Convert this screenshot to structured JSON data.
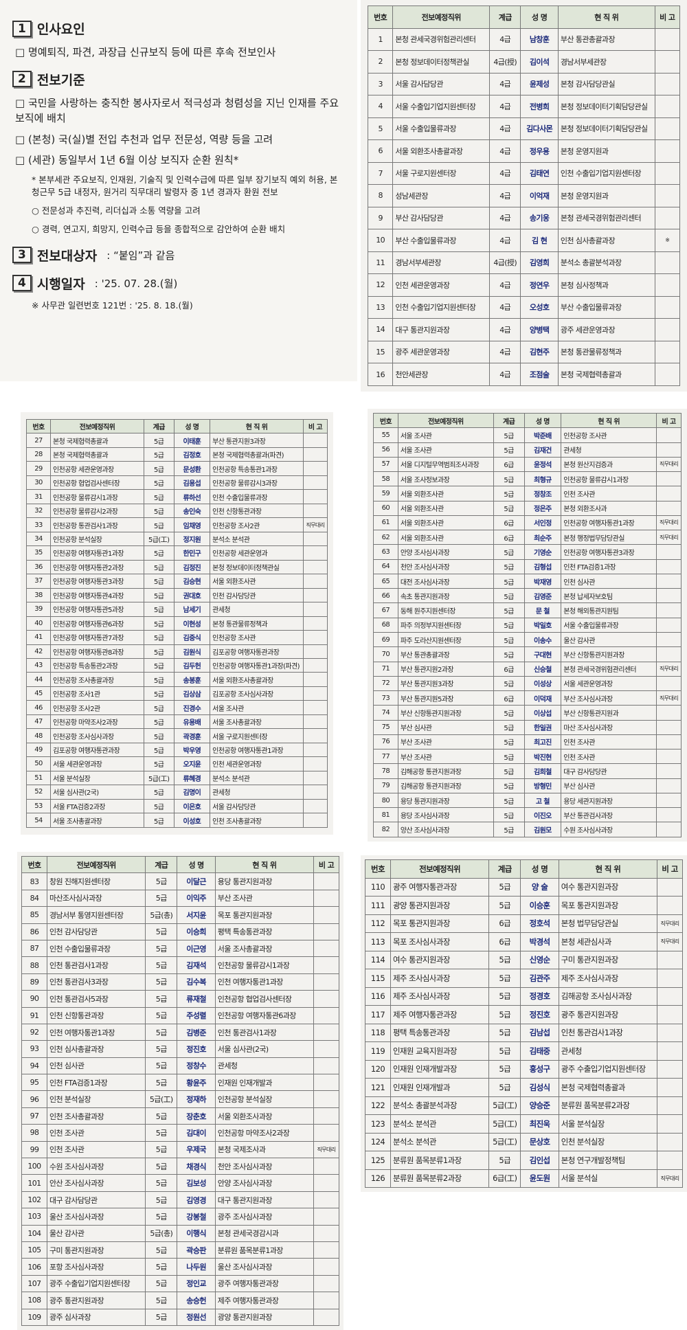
{
  "notice": {
    "sections": [
      {
        "number": "1",
        "title": "인사요인",
        "items": [
          "□ 명예퇴직, 파견, 과장급 신규보직 등에 따른 후속 전보인사"
        ]
      },
      {
        "number": "2",
        "title": "전보기준",
        "items": [
          "□ 국민을 사랑하는 충직한 봉사자로서 적극성과 청렴성을 지닌 인재를 주요 보직에 배치",
          "□ (본청) 국(실)별 전입 추천과 업무 전문성, 역량 등을 고려",
          "□ (세관) 동일부서 1년 6월 이상 보직자 순환 원칙*",
          "* 본부세관 주요보직, 인재원, 기술직 및 인력수급에 따른 일부 장기보직 예외 허용, 본청근무 5급 내정자, 원거리 직무대리 발령자 중 1년 경과자 환원 전보",
          "○ 전문성과 추진력, 리더십과 소통 역량을 고려",
          "○ 경력, 연고지, 희망지, 인력수급 등을 종합적으로 감안하여 순환 배치"
        ]
      },
      {
        "number": "3",
        "title": "전보대상자",
        "detail": ": “붙임”과 같음",
        "items": []
      },
      {
        "number": "4",
        "title": "시행일자",
        "detail": ": '25. 07. 28.(월)",
        "items": [
          "※ 사무관 일련번호 121번 : '25. 8. 18.(월)"
        ]
      }
    ]
  },
  "tables": [
    {
      "header": [
        "번호",
        "전보예정직위",
        "계급",
        "성 명",
        "현 직 위",
        "비 고"
      ],
      "rows": [
        [
          1,
          "본청 관세국경위험관리센터",
          "4급",
          "남창훈",
          "부산 통관총괄과장"
        ],
        [
          2,
          "본청 정보데이터정책관실",
          "4급(授)",
          "김이석",
          "경남서부세관장"
        ],
        [
          3,
          "서울 감사담당관",
          "4급",
          "윤제성",
          "본청 감사담당관실"
        ],
        [
          4,
          "서울 수출입기업지원센터장",
          "4급",
          "전병희",
          "본청 정보데이터기획담당관실"
        ],
        [
          5,
          "서울 수출입물류과장",
          "4급",
          "김다사몬",
          "본청 정보데이터기획담당관실"
        ],
        [
          6,
          "서울 외환조사총괄과장",
          "4급",
          "정우용",
          "본청 운영지원과"
        ],
        [
          7,
          "서울 구로지원센터장",
          "4급",
          "김태연",
          "인천 수출입기업지원센터장"
        ],
        [
          8,
          "성남세관장",
          "4급",
          "이억재",
          "본청 운영지원과"
        ],
        [
          9,
          "부산 감사담당관",
          "4급",
          "송기웅",
          "본청 관세국경위험관리센터"
        ],
        [
          10,
          "부산 수출입물류과장",
          "4급",
          "김 현",
          "인천 심사총괄과장",
          "※"
        ],
        [
          11,
          "경남서부세관장",
          "4급(授)",
          "김영희",
          "분석소 총괄분석과장"
        ],
        [
          12,
          "인천 세관운영과장",
          "4급",
          "정연우",
          "본청 심사정책과"
        ],
        [
          13,
          "인천 수출입기업지원센터장",
          "4급",
          "오성호",
          "부산 수출입물류과장"
        ],
        [
          14,
          "대구 통관지원과장",
          "4급",
          "양병택",
          "광주 세관운영과장"
        ],
        [
          15,
          "광주 세관운영과장",
          "4급",
          "김현주",
          "본청 통관물류정책과"
        ],
        [
          16,
          "천안세관장",
          "4급",
          "조점술",
          "본청 국제협력총괄과"
        ]
      ]
    },
    {
      "header": [
        "번호",
        "전보예정직위",
        "계급",
        "성 명",
        "현 직 위",
        "비 고"
      ],
      "rows": [
        [
          27,
          "본청 국제협력총괄과",
          "5급",
          "이태훈",
          "부산 통관지원3과장"
        ],
        [
          28,
          "본청 국제협력총괄과",
          "5급",
          "김정호",
          "본청 국제협력총괄과(파견)"
        ],
        [
          29,
          "인천공항 세관운영과장",
          "5급",
          "문성환",
          "인천공항 특송통관1과장"
        ],
        [
          30,
          "인천공항 협업검사센터장",
          "5급",
          "김용섭",
          "인천공항 물류감시3과장"
        ],
        [
          31,
          "인천공항 물류감시1과장",
          "5급",
          "류하선",
          "인천 수출입물류과장"
        ],
        [
          32,
          "인천공항 물류감시2과장",
          "5급",
          "송인숙",
          "인천 신항통관과장"
        ],
        [
          33,
          "인천공항 통관검사1과장",
          "5급",
          "임채영",
          "인천공항 조사2관",
          "직무대리"
        ],
        [
          34,
          "인천공항 분석실장",
          "5급(工)",
          "정지원",
          "분석소 분석관"
        ],
        [
          35,
          "인천공항 여행자통관1과장",
          "5급",
          "한민구",
          "인천공항 세관운영과"
        ],
        [
          36,
          "인천공항 여행자통관2과장",
          "5급",
          "김정진",
          "본청 정보데이터정책관실"
        ],
        [
          37,
          "인천공항 여행자통관3과장",
          "5급",
          "김승현",
          "서울 외환조사관"
        ],
        [
          38,
          "인천공항 여행자통관4과장",
          "5급",
          "권대호",
          "인천 감사담당관"
        ],
        [
          39,
          "인천공항 여행자통관5과장",
          "5급",
          "남세기",
          "관세청"
        ],
        [
          40,
          "인천공항 여행자통관6과장",
          "5급",
          "이현성",
          "본청 통관물류정책과"
        ],
        [
          41,
          "인천공항 여행자통관7과장",
          "5급",
          "김중식",
          "인천공항 조사관"
        ],
        [
          42,
          "인천공항 여행자통관8과장",
          "5급",
          "김원식",
          "김포공항 여행자통관과장"
        ],
        [
          43,
          "인천공항 특송통관2과장",
          "5급",
          "김두헌",
          "인천공항 여행자통관1과장(파견)"
        ],
        [
          44,
          "인천공항 조사총괄과장",
          "5급",
          "송봉훈",
          "서울 외환조사총괄과장"
        ],
        [
          45,
          "인천공항 조사1관",
          "5급",
          "김상삼",
          "김포공항 조사심사과장"
        ],
        [
          46,
          "인천공항 조사2관",
          "5급",
          "진경수",
          "서울 조사관"
        ],
        [
          47,
          "인천공항 마약조사2과장",
          "5급",
          "유용배",
          "서울 조사총괄과장"
        ],
        [
          48,
          "인천공항 조사심사과장",
          "5급",
          "곽경훈",
          "서울 구로지원센터장"
        ],
        [
          49,
          "김포공항 여행자통관과장",
          "5급",
          "박우영",
          "인천공항 여행자통관1과장"
        ],
        [
          50,
          "서울 세관운영과장",
          "5급",
          "오지윤",
          "인천 세관운영과장"
        ],
        [
          51,
          "서울 분석실장",
          "5급(工)",
          "류혜경",
          "분석소 분석관"
        ],
        [
          52,
          "서울 심사관(2국)",
          "5급",
          "김명이",
          "관세청"
        ],
        [
          53,
          "서울 FTA검증2과장",
          "5급",
          "이은호",
          "서울 감사담당관"
        ],
        [
          54,
          "서울 조사총괄과장",
          "5급",
          "이성호",
          "인천 조사총괄과장"
        ]
      ]
    },
    {
      "header": [
        "번호",
        "전보예정직위",
        "계급",
        "성 명",
        "현 직 위",
        "비 고"
      ],
      "rows": [
        [
          55,
          "서울 조사관",
          "5급",
          "박준배",
          "인천공항 조사관"
        ],
        [
          56,
          "서울 조사관",
          "5급",
          "김재건",
          "관세청"
        ],
        [
          57,
          "서울 디지털무역범죄조사과장",
          "6급",
          "윤정석",
          "본청 원산지검증과",
          "직무대리"
        ],
        [
          58,
          "서울 조사정보과장",
          "5급",
          "최형규",
          "인천공항 물류감시1과장"
        ],
        [
          59,
          "서울 외환조사관",
          "5급",
          "정창조",
          "인천 조사관"
        ],
        [
          60,
          "서울 외환조사관",
          "5급",
          "정은주",
          "본청 외환조사과"
        ],
        [
          61,
          "서울 외환조사관",
          "6급",
          "서인정",
          "인천공항 여행자통관1과장",
          "직무대리"
        ],
        [
          62,
          "서울 외환조사관",
          "6급",
          "최순주",
          "본청 행정법무담당관실",
          "직무대리"
        ],
        [
          63,
          "안양 조사심사과장",
          "5급",
          "기영순",
          "인천공항 여행자통관3과장"
        ],
        [
          64,
          "천안 조사심사과장",
          "5급",
          "김형섭",
          "인천 FTA검증1과장"
        ],
        [
          65,
          "대전 조사심사과장",
          "5급",
          "박재영",
          "인천 심사관"
        ],
        [
          66,
          "속초 통관지원과장",
          "5급",
          "김영준",
          "본청 납세자보호팀"
        ],
        [
          67,
          "동해 원주지원센터장",
          "5급",
          "문 철",
          "본청 해외통관지원팀"
        ],
        [
          68,
          "파주 의정부지원센터장",
          "5급",
          "박일호",
          "서울 수출입물류과장"
        ],
        [
          69,
          "파주 도라산지원센터장",
          "5급",
          "이송수",
          "울산 감사관"
        ],
        [
          70,
          "부산 통관총괄과장",
          "5급",
          "구대현",
          "부산 신항통관지원과장"
        ],
        [
          71,
          "부산 통관지원2과장",
          "6급",
          "신승철",
          "본청 관세국경위험관리센터",
          "직무대리"
        ],
        [
          72,
          "부산 통관지원3과장",
          "5급",
          "이성상",
          "서울 세관운영과장"
        ],
        [
          73,
          "부산 통관지원5과장",
          "6급",
          "이덕재",
          "부산 조사심사과장",
          "직무대리"
        ],
        [
          74,
          "부산 신항통관지원과장",
          "5급",
          "이상섭",
          "부산 신항통관지원과"
        ],
        [
          75,
          "부산 심사관",
          "5급",
          "한일권",
          "마산 조사심사과장"
        ],
        [
          76,
          "부산 조사관",
          "5급",
          "최고진",
          "인천 조사관"
        ],
        [
          77,
          "부산 조사관",
          "5급",
          "박진현",
          "인천 조사관"
        ],
        [
          78,
          "김해공항 통관지원과장",
          "5급",
          "김희철",
          "대구 감사담당관"
        ],
        [
          79,
          "김해공항 통관지원과장",
          "5급",
          "방형민",
          "부산 심사관"
        ],
        [
          80,
          "용당 통관지원과장",
          "5급",
          "고 철",
          "용당 세관지원과장"
        ],
        [
          81,
          "용당 조사심사과장",
          "5급",
          "이진오",
          "부산 통관검사과장"
        ],
        [
          82,
          "양산 조사심사과장",
          "5급",
          "김원모",
          "수원 조사심사과장"
        ]
      ]
    },
    {
      "header": [
        "번호",
        "전보예정직위",
        "계급",
        "성 명",
        "현 직 위",
        "비 고"
      ],
      "rows": [
        [
          83,
          "창원 진해지원센터장",
          "5급",
          "이달근",
          "용당 통관지원과장"
        ],
        [
          84,
          "마산조사심사과장",
          "5급",
          "이익주",
          "부산 조사관"
        ],
        [
          85,
          "경남서부 통영지원센터장",
          "5급(총)",
          "서지윤",
          "목포 통관지원과장"
        ],
        [
          86,
          "인천 감사담당관",
          "5급",
          "이승희",
          "평택 특송통관과장"
        ],
        [
          87,
          "인천 수출입물류과장",
          "5급",
          "이근영",
          "서울 조사총괄과장"
        ],
        [
          88,
          "인천 통관검사1과장",
          "5급",
          "김재석",
          "인천공항 물류감시1과장"
        ],
        [
          89,
          "인천 통관검사3과장",
          "5급",
          "김수복",
          "인천 여행자통관1과장"
        ],
        [
          90,
          "인천 통관검사5과장",
          "5급",
          "류재철",
          "인천공항 협업검사센터장"
        ],
        [
          91,
          "인천 신항통관과장",
          "5급",
          "주성렬",
          "인천공항 여행자통관6과장"
        ],
        [
          92,
          "인천 여행자통관1과장",
          "5급",
          "김병준",
          "인천 통관검사1과장"
        ],
        [
          93,
          "인천 심사총괄과장",
          "5급",
          "정진호",
          "서울 심사관(2국)"
        ],
        [
          94,
          "인천 심사관",
          "5급",
          "정창수",
          "관세청"
        ],
        [
          95,
          "인천 FTA검증1과장",
          "5급",
          "황윤주",
          "인재원 인재개발과"
        ],
        [
          96,
          "인천 분석실장",
          "5급(工)",
          "정재하",
          "인천공항 분석실장"
        ],
        [
          97,
          "인천 조사총괄과장",
          "5급",
          "장춘호",
          "서울 외환조사과장"
        ],
        [
          98,
          "인천 조사관",
          "5급",
          "김대이",
          "인천공항 마약조사2과장"
        ],
        [
          99,
          "인천 조사관",
          "5급",
          "우제국",
          "본청 국제조사과",
          "직무대리"
        ],
        [
          100,
          "수원 조사심사과장",
          "5급",
          "채경식",
          "천안 조사심사과장"
        ],
        [
          101,
          "안산 조사심사과장",
          "5급",
          "김보성",
          "안양 조사심사과장"
        ],
        [
          102,
          "대구 감사담당관",
          "5급",
          "김영경",
          "대구 통관지원과장"
        ],
        [
          103,
          "울산 조사심사과장",
          "5급",
          "강봉철",
          "광주 조사심사과장"
        ],
        [
          104,
          "울산 감사관",
          "5급(총)",
          "이행식",
          "본청 관세국경감시과"
        ],
        [
          105,
          "구미 통관지원과장",
          "5급",
          "곽승판",
          "분류원 품목분류1과장"
        ],
        [
          106,
          "포항 조사심사과장",
          "5급",
          "나두원",
          "울산 조사심사과장"
        ],
        [
          107,
          "광주 수출입기업지원센터장",
          "5급",
          "정인교",
          "광주 여행자통관과장"
        ],
        [
          108,
          "광주 통관지원과장",
          "5급",
          "송승헌",
          "제주 여행자통관과장"
        ],
        [
          109,
          "광주 심사과장",
          "5급",
          "정원선",
          "광양 통관지원과장"
        ]
      ]
    },
    {
      "header": [
        "번호",
        "전보예정직위",
        "계급",
        "성 명",
        "현 직 위",
        "비 고"
      ],
      "rows": [
        [
          110,
          "광주 여행자통관과장",
          "5급",
          "양 술",
          "여수 통관지원과장"
        ],
        [
          111,
          "광양 통관지원과장",
          "5급",
          "이승훈",
          "목포 통관지원과장"
        ],
        [
          112,
          "목포 통관지원과장",
          "6급",
          "정호석",
          "본청 법무담당관실",
          "직무대리"
        ],
        [
          113,
          "목포 조사심사과장",
          "6급",
          "박경석",
          "본청 세관심사과",
          "직무대리"
        ],
        [
          114,
          "여수 통관지원과장",
          "5급",
          "신영순",
          "구미 통관지원과장"
        ],
        [
          115,
          "제주 조사심사과장",
          "5급",
          "김관주",
          "제주 조사심사과장"
        ],
        [
          116,
          "제주 조사심사과장",
          "5급",
          "정경호",
          "김해공항 조사심사과장"
        ],
        [
          117,
          "제주 여행자통관과장",
          "5급",
          "정진호",
          "광주 통관지원과장"
        ],
        [
          118,
          "평택 특송통관과장",
          "5급",
          "김남섭",
          "인천 통관검사1과장"
        ],
        [
          119,
          "인재원 교육지원과장",
          "5급",
          "김태중",
          "관세청"
        ],
        [
          120,
          "인재원 인재개발과장",
          "5급",
          "홍성구",
          "광주 수출입기업지원센터장"
        ],
        [
          121,
          "인재원 인재개발과",
          "5급",
          "김성식",
          "본청 국제협력총괄과"
        ],
        [
          122,
          "분석소 총괄분석과장",
          "5급(工)",
          "양승준",
          "분류원 품목분류2과장"
        ],
        [
          123,
          "분석소 분석관",
          "5급(工)",
          "최진욱",
          "서울 분석실장"
        ],
        [
          124,
          "분석소 분석관",
          "5급(工)",
          "문상호",
          "인천 분석실장"
        ],
        [
          125,
          "분류원 품목분류1과장",
          "5급",
          "김인섭",
          "본청 연구개발정책팀"
        ],
        [
          126,
          "분류원 품목분류2과장",
          "6급(工)",
          "윤도원",
          "서울 분석실",
          "직무대리"
        ]
      ]
    }
  ]
}
